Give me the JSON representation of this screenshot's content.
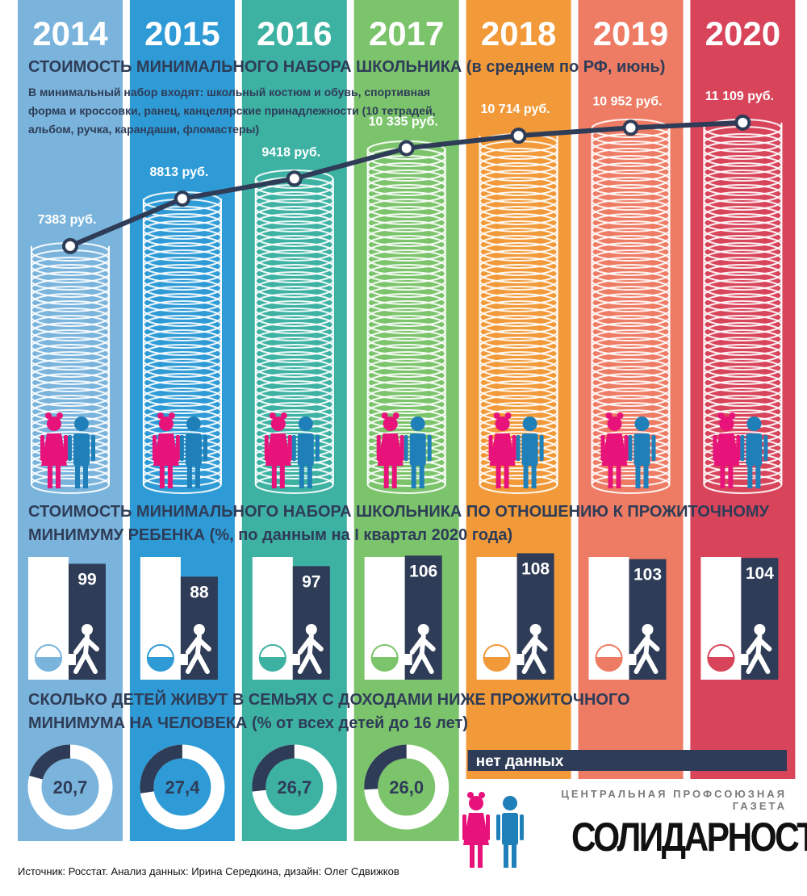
{
  "chart_data": [
    {
      "type": "line",
      "title": "СТОИМОСТЬ МИНИМАЛЬНОГО НАБОРА ШКОЛЬНИКА (в среднем по РФ, июнь)",
      "subtitle": "В минимальный набор входят: школьный костюм и обувь, спортивная форма и кроссовки, ранец, канцелярские принадлежности (10 тетрадей, альбом, ручка, карандаши, фломастеры)",
      "categories": [
        "2014",
        "2015",
        "2016",
        "2017",
        "2018",
        "2019",
        "2020"
      ],
      "values": [
        7383,
        8813,
        9418,
        10335,
        10714,
        10952,
        11109
      ],
      "value_labels": [
        "7383 руб.",
        "8813 руб.",
        "9418 руб.",
        "10 335 руб.",
        "10 714 руб.",
        "10 952 руб.",
        "11 109 руб."
      ],
      "color": "#2e3c57",
      "column_colors": [
        "#7ab4dc",
        "#2f9bd6",
        "#3db2a3",
        "#7cc46c",
        "#f29a39",
        "#ee7b63",
        "#d8455b"
      ]
    },
    {
      "type": "bar",
      "title": "СТОИМОСТЬ МИНИМАЛЬНОГО НАБОРА ШКОЛЬНИКА ПО ОТНОШЕНИЮ К ПРОЖИТОЧНОМУ МИНИМУМУ РЕБЕНКА (%, по данным на I квартал 2020 года)",
      "values": [
        99,
        88,
        97,
        106,
        108,
        103,
        104
      ],
      "color": "#2e3c57"
    },
    {
      "type": "donut",
      "title": "СКОЛЬКО ДЕТЕЙ ЖИВУТ В СЕМЬЯХ С ДОХОДАМИ НИЖЕ ПРОЖИТОЧНОГО МИНИМУМА НА ЧЕЛОВЕКА (% от всех детей до 16 лет)",
      "values": [
        20.7,
        27.4,
        26.7,
        26.0,
        null,
        null,
        null
      ],
      "value_labels": [
        "20,7",
        "27,4",
        "26,7",
        "26,0",
        null,
        null,
        null
      ],
      "annotation": "нет данных",
      "color": "#2e3c57"
    }
  ],
  "footer": {
    "tagline": "ЦЕНТРАЛЬНАЯ ПРОФСОЮЗНАЯ ГАЗЕТА",
    "brand": "СОЛИДАРНОСТЬ",
    "source": "Источник: Росстат.  Анализ данных: Ирина Середкина, дизайн: Олег Сдвижков"
  }
}
